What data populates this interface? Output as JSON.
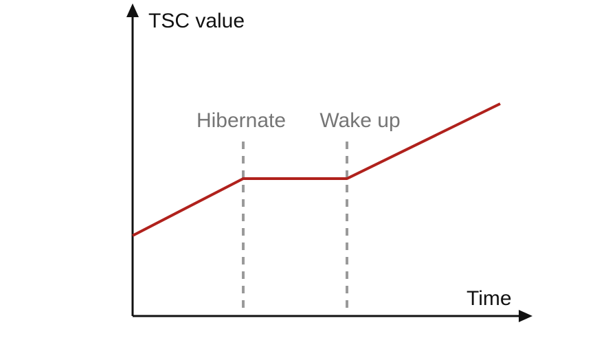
{
  "y_axis_label": "TSC value",
  "x_axis_label": "Time",
  "events": {
    "hibernate": "Hibernate",
    "wake_up": "Wake up"
  },
  "colors": {
    "tsc_line": "#b0211c",
    "axis": "#111111",
    "event_marker": "#9a9a9a",
    "event_text": "#757575",
    "axis_text": "#111111"
  }
}
